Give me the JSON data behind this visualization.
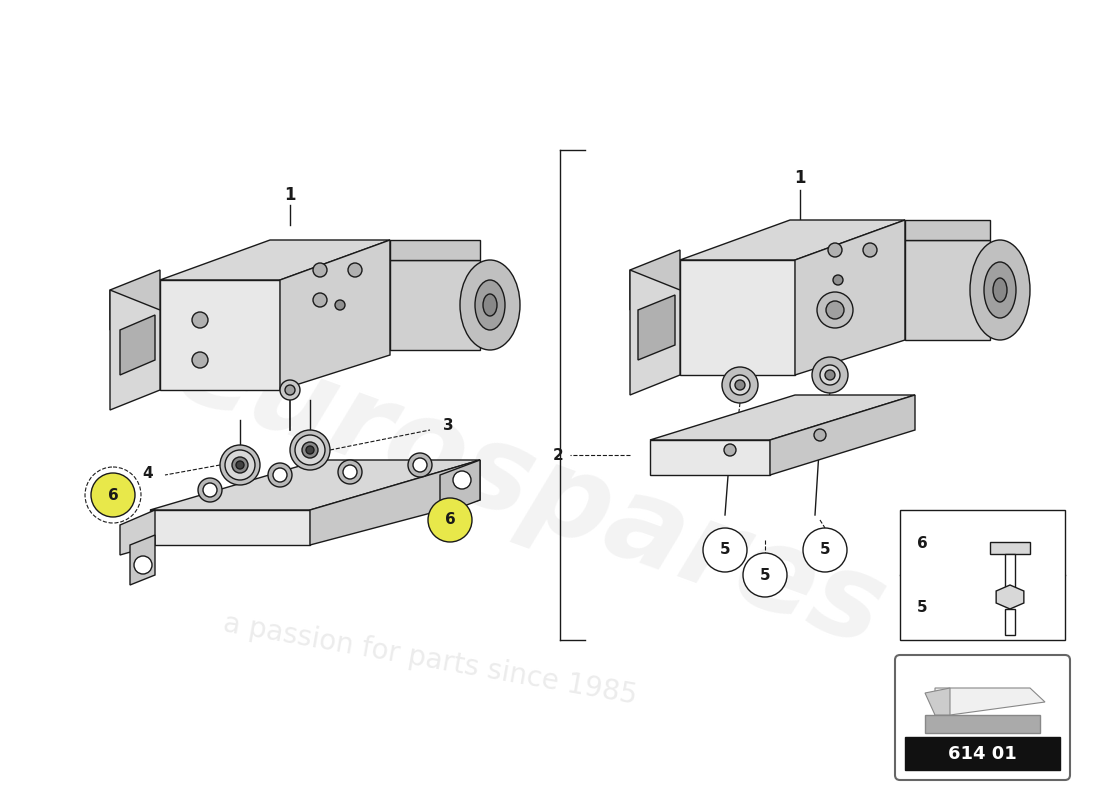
{
  "bg_color": "#ffffff",
  "line_color": "#1a1a1a",
  "part_code": "614 01",
  "watermark_text1": "eurospares",
  "watermark_text2": "a passion for parts since 1985",
  "fig_width": 11.0,
  "fig_height": 8.0,
  "dpi": 100
}
